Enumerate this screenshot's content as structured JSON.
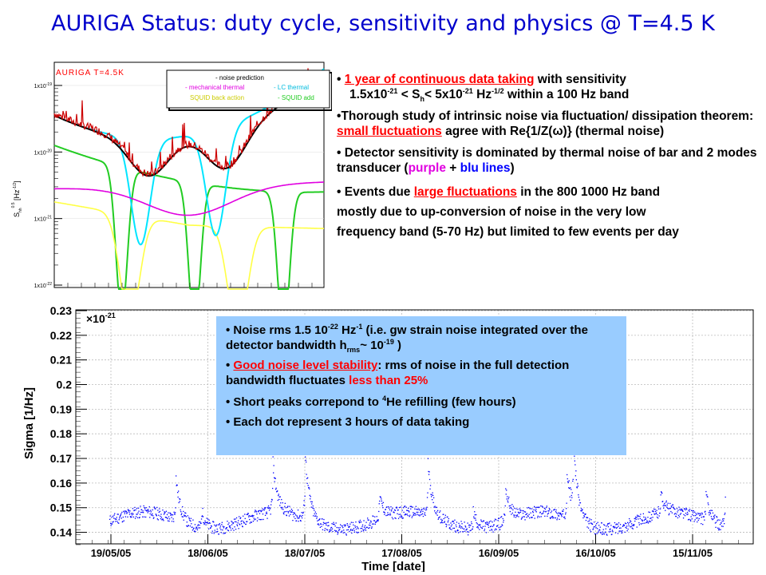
{
  "title": "AURIGA Status: duty cycle, sensitivity and physics @ T=4.5 K",
  "bullets": {
    "b1_a": "1 year of continuous data taking",
    "b1_b": " with sensitivity",
    "b1_c": "1.5x10",
    "b1_exp1": "-21",
    "b1_d": " < S",
    "b1_sub": "h",
    "b1_e": "< 5x10",
    "b1_exp2": "-21",
    "b1_f": " Hz",
    "b1_exp3": "-1/2",
    "b1_g": " within a 100 Hz band",
    "b2_a": "Thorough study of intrinsic noise via fluctuation/ dissipation theorem: ",
    "b2_b": "small fluctuations",
    "b2_c": " agree with Re{1/Z(ω)} (thermal noise)",
    "b3_a": "Detector sensitivity is dominated by thermal noise of bar and 2 modes transducer (",
    "b3_b": "purple",
    "b3_c": " + ",
    "b3_d": "blu lines",
    "b3_e": ")",
    "b4_a": "Events due ",
    "b4_b": "large fluctuations",
    "b4_c": "  in the 800 1000 Hz band",
    "b4_d": "mostly due to  up-conversion of noise in the very low",
    "b4_e": "frequency band (5-70 Hz) but limited to few events per day"
  },
  "callout": {
    "c1_a": "Noise rms 1.5 10",
    "c1_exp1": "-22",
    "c1_b": " Hz",
    "c1_exp2": "-1",
    "c1_c": " (i.e. gw strain noise integrated over the detector bandwidth h",
    "c1_sub": "rms",
    "c1_d": "~ 10",
    "c1_exp3": "-19",
    "c1_e": " )",
    "c2_a": "Good noise level stability",
    "c2_b": ": rms of noise in the full detection bandwidth fluctuates ",
    "c2_c": "less than  25%",
    "c3_a": "Short peaks correpond to ",
    "c3_sup": "4",
    "c3_b": "He refilling (few hours)",
    "c4": "Each dot represent 3 hours of data taking"
  },
  "chart_data": [
    {
      "type": "line",
      "title": "AURIGA T=4.5K",
      "xlabel": "",
      "ylabel": "S_hh^0.5 [Hz^-1/2]",
      "yscale": "log",
      "ylim": [
        1e-22,
        1.5e-19
      ],
      "ytick_labels": [
        "1x10-19",
        "1x10-20",
        "1x10-21",
        "1x10-22"
      ],
      "legend": [
        "- noise prediction",
        "- mechanical thermal",
        "- LC thermal",
        "SQUID back action",
        "- SQUID add"
      ],
      "legend_placement": "top-right",
      "series_colors": {
        "data": "#cc0000",
        "prediction": "#000000",
        "mechanical": "#e000e0",
        "lc": "#00e5ff",
        "backaction": "#ffff44",
        "add": "#22cc22"
      }
    },
    {
      "type": "scatter",
      "xlabel": "Time [date]",
      "ylabel": "Sigma [1/Hz]",
      "multiplier": "x10-21",
      "ylim": [
        0.135,
        0.23
      ],
      "y_ticks": [
        0.14,
        0.15,
        0.16,
        0.17,
        0.18,
        0.19,
        0.2,
        0.21,
        0.22,
        0.23
      ],
      "y_tick_labels": [
        "0.14",
        "0.15",
        "0.16",
        "0.17",
        "0.18",
        "0.19",
        "0.2",
        "0.21",
        "0.22",
        "0.23"
      ],
      "x_tick_labels": [
        "19/05/05",
        "18/06/05",
        "18/07/05",
        "17/08/05",
        "16/09/05",
        "16/10/05",
        "15/11/05"
      ],
      "point_color": "#0000ff",
      "baseline": 0.145,
      "peaks": [
        {
          "day": 20,
          "value": 0.162
        },
        {
          "day": 28,
          "value": 0.152
        },
        {
          "day": 50,
          "value": 0.165
        },
        {
          "day": 60,
          "value": 0.171
        },
        {
          "day": 83,
          "value": 0.154
        },
        {
          "day": 98,
          "value": 0.166
        },
        {
          "day": 112,
          "value": 0.152
        },
        {
          "day": 122,
          "value": 0.159
        },
        {
          "day": 141,
          "value": 0.165
        },
        {
          "day": 143,
          "value": 0.173
        },
        {
          "day": 170,
          "value": 0.153
        },
        {
          "day": 184,
          "value": 0.156
        },
        {
          "day": 192,
          "value": 0.154
        },
        {
          "day": 190,
          "value": 0.156
        }
      ]
    }
  ]
}
